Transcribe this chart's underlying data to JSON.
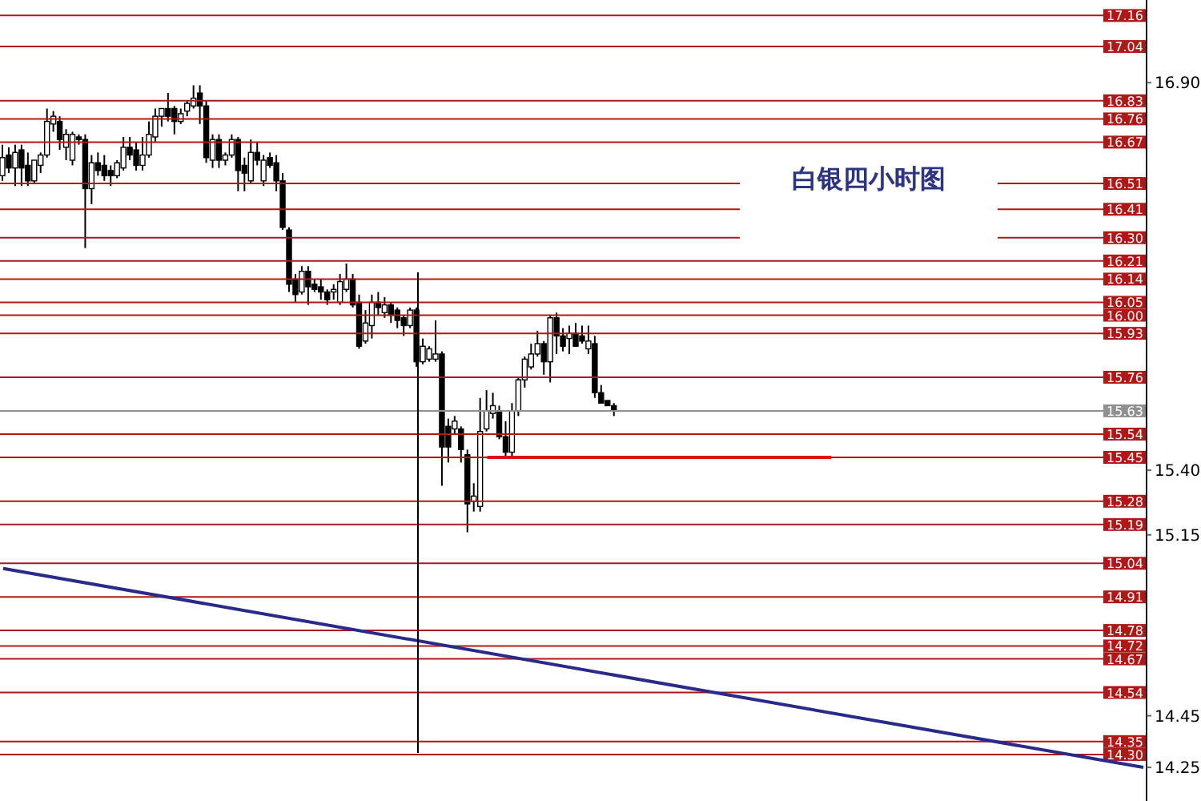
{
  "chart_data": {
    "type": "candlestick",
    "title": "白银四小时图",
    "categories": [
      null,
      null,
      null,
      null,
      null,
      null,
      null,
      null,
      null,
      null,
      null,
      null,
      null,
      null,
      null,
      null,
      null,
      null,
      null,
      null,
      null,
      null,
      null,
      null,
      null,
      null,
      null,
      null,
      null,
      null,
      null,
      null,
      null,
      null,
      null,
      null,
      null,
      null,
      null,
      null,
      null,
      null,
      null,
      null,
      null,
      null,
      null,
      null,
      null,
      null,
      null,
      null,
      null,
      null,
      null,
      null,
      null,
      null,
      null,
      null,
      null,
      null,
      null,
      null,
      null,
      null,
      null,
      null,
      null,
      null,
      null,
      null,
      null,
      null,
      null,
      null,
      null,
      null,
      null,
      null,
      null,
      null,
      null,
      null,
      null,
      null,
      null,
      null,
      null,
      null,
      null,
      null,
      null,
      null,
      null,
      null,
      null,
      null,
      null,
      null,
      null,
      null,
      null,
      null,
      null,
      null,
      null,
      null,
      null,
      null,
      null,
      null,
      null,
      null,
      null,
      null,
      null,
      null,
      null,
      null,
      null,
      null,
      null,
      null,
      null,
      null,
      null,
      null,
      null,
      null,
      null,
      null,
      null,
      null,
      null,
      null,
      null,
      null,
      null,
      null,
      null,
      null,
      null,
      null,
      null,
      null,
      null,
      null,
      null,
      null,
      null,
      null,
      null,
      null,
      null,
      null,
      null,
      null,
      null,
      null,
      null,
      null,
      null,
      null,
      null,
      null,
      null,
      null,
      null,
      null,
      null,
      null,
      null,
      null,
      null,
      null,
      null,
      null,
      null,
      null
    ],
    "ohlc": [
      [
        16.54,
        16.66,
        16.52,
        16.61
      ],
      [
        16.62,
        16.65,
        16.55,
        16.57
      ],
      [
        16.57,
        16.66,
        16.5,
        16.63
      ],
      [
        16.64,
        16.66,
        16.5,
        16.57
      ],
      [
        16.58,
        16.63,
        16.5,
        16.52
      ],
      [
        16.52,
        16.6,
        16.51,
        16.6
      ],
      [
        16.58,
        16.63,
        16.55,
        16.62
      ],
      [
        16.62,
        16.8,
        16.61,
        16.75
      ],
      [
        16.74,
        16.79,
        16.71,
        16.77
      ],
      [
        16.75,
        16.77,
        16.64,
        16.68
      ],
      [
        16.65,
        16.72,
        16.6,
        16.7
      ],
      [
        16.6,
        16.71,
        16.58,
        16.7
      ],
      [
        16.69,
        16.7,
        16.66,
        16.68
      ],
      [
        16.68,
        16.7,
        16.26,
        16.49
      ],
      [
        16.49,
        16.62,
        16.43,
        16.59
      ],
      [
        16.59,
        16.63,
        16.54,
        16.56
      ],
      [
        16.58,
        16.62,
        16.52,
        16.54
      ],
      [
        16.56,
        16.58,
        16.5,
        16.54
      ],
      [
        16.54,
        16.6,
        16.53,
        16.59
      ],
      [
        16.57,
        16.69,
        16.56,
        16.65
      ],
      [
        16.65,
        16.69,
        16.6,
        16.62
      ],
      [
        16.64,
        16.67,
        16.56,
        16.58
      ],
      [
        16.58,
        16.69,
        16.56,
        16.62
      ],
      [
        16.62,
        16.75,
        16.61,
        16.7
      ],
      [
        16.69,
        16.8,
        16.67,
        16.77
      ],
      [
        16.77,
        16.8,
        16.73,
        16.8
      ],
      [
        16.8,
        16.86,
        16.75,
        16.77
      ],
      [
        16.8,
        16.81,
        16.7,
        16.75
      ],
      [
        16.75,
        16.8,
        16.74,
        16.78
      ],
      [
        16.79,
        16.83,
        16.77,
        16.82
      ],
      [
        16.81,
        16.89,
        16.8,
        16.84
      ],
      [
        16.86,
        16.89,
        16.74,
        16.81
      ],
      [
        16.81,
        16.83,
        16.59,
        16.61
      ],
      [
        16.6,
        16.7,
        16.57,
        16.68
      ],
      [
        16.68,
        16.7,
        16.57,
        16.6
      ],
      [
        16.6,
        16.63,
        16.58,
        16.62
      ],
      [
        16.62,
        16.7,
        16.61,
        16.68
      ],
      [
        16.68,
        16.69,
        16.48,
        16.56
      ],
      [
        16.58,
        16.61,
        16.48,
        16.55
      ],
      [
        16.52,
        16.68,
        16.51,
        16.63
      ],
      [
        16.63,
        16.67,
        16.58,
        16.6
      ],
      [
        16.52,
        16.62,
        16.5,
        16.6
      ],
      [
        16.61,
        16.63,
        16.57,
        16.58
      ],
      [
        16.59,
        16.62,
        16.48,
        16.52
      ],
      [
        16.52,
        16.55,
        16.33,
        16.34
      ],
      [
        16.33,
        16.34,
        16.09,
        16.12
      ],
      [
        16.14,
        16.16,
        16.05,
        16.08
      ],
      [
        16.09,
        16.19,
        16.08,
        16.17
      ],
      [
        16.17,
        16.19,
        16.04,
        16.11
      ],
      [
        16.12,
        16.14,
        16.09,
        16.1
      ],
      [
        16.11,
        16.14,
        16.06,
        16.09
      ],
      [
        16.09,
        16.1,
        16.04,
        16.06
      ],
      [
        16.09,
        16.12,
        16.06,
        16.1
      ],
      [
        16.05,
        16.16,
        16.04,
        16.13
      ],
      [
        16.1,
        16.2,
        16.09,
        16.14
      ],
      [
        16.14,
        16.16,
        16.03,
        16.04
      ],
      [
        16.05,
        16.08,
        15.87,
        15.88
      ],
      [
        15.9,
        16.02,
        15.89,
        15.97
      ],
      [
        15.96,
        16.08,
        15.91,
        16.05
      ],
      [
        16.05,
        16.09,
        16.0,
        16.03
      ],
      [
        16.01,
        16.07,
        15.99,
        16.04
      ],
      [
        16.04,
        16.05,
        15.97,
        16.0
      ],
      [
        16.02,
        16.03,
        15.95,
        15.98
      ],
      [
        15.99,
        16.0,
        15.92,
        15.96
      ],
      [
        15.96,
        16.03,
        15.95,
        16.02
      ],
      [
        16.02,
        16.03,
        15.8,
        15.82
      ],
      [
        15.82,
        15.91,
        15.81,
        15.88
      ],
      [
        15.83,
        15.88,
        15.82,
        15.87
      ],
      [
        15.83,
        15.98,
        15.82,
        15.85
      ],
      [
        15.85,
        15.86,
        15.34,
        15.49
      ],
      [
        15.57,
        15.6,
        15.43,
        15.49
      ],
      [
        15.56,
        15.61,
        15.54,
        15.59
      ],
      [
        15.56,
        15.57,
        15.43,
        15.48
      ],
      [
        15.46,
        15.48,
        15.16,
        15.27
      ],
      [
        15.28,
        15.35,
        15.24,
        15.3
      ],
      [
        15.26,
        15.68,
        15.24,
        15.55
      ],
      [
        15.56,
        15.71,
        15.55,
        15.63
      ],
      [
        15.62,
        15.7,
        15.6,
        15.65
      ],
      [
        15.63,
        15.65,
        15.52,
        15.53
      ],
      [
        15.53,
        15.59,
        15.45,
        15.47
      ],
      [
        15.47,
        15.66,
        15.45,
        15.63
      ],
      [
        15.63,
        15.76,
        15.61,
        15.75
      ],
      [
        15.75,
        15.84,
        15.72,
        15.83
      ],
      [
        15.8,
        15.89,
        15.79,
        15.85
      ],
      [
        15.85,
        15.94,
        15.84,
        15.89
      ],
      [
        15.89,
        15.9,
        15.77,
        15.82
      ],
      [
        15.82,
        16.0,
        15.74,
        15.99
      ],
      [
        15.99,
        16.01,
        15.85,
        15.92
      ],
      [
        15.92,
        15.95,
        15.86,
        15.88
      ],
      [
        15.91,
        15.96,
        15.85,
        15.93
      ],
      [
        15.93,
        15.97,
        15.88,
        15.88
      ],
      [
        15.92,
        15.96,
        15.89,
        15.9
      ],
      [
        15.87,
        15.96,
        15.85,
        15.9
      ],
      [
        15.89,
        15.92,
        15.68,
        15.7
      ],
      [
        15.7,
        15.73,
        15.66,
        15.66
      ],
      [
        15.67,
        15.67,
        15.65,
        15.65
      ],
      [
        15.65,
        15.66,
        15.61,
        15.63
      ],
      null,
      null,
      null,
      null,
      null,
      null,
      null,
      null,
      null,
      null,
      null,
      null,
      null,
      null,
      null,
      null,
      null,
      null,
      null,
      null,
      null,
      null,
      null,
      null,
      null,
      null,
      null,
      null,
      null,
      null,
      null,
      null,
      null,
      null,
      null,
      null,
      null,
      null,
      null,
      null,
      null,
      null,
      null,
      null,
      null,
      null,
      null,
      null,
      null,
      null,
      null,
      null,
      null,
      null,
      null,
      null,
      null,
      null,
      null,
      null,
      null,
      null,
      null,
      null,
      null,
      null,
      null,
      null,
      null,
      null,
      null,
      null,
      null,
      null,
      null,
      null,
      null,
      null,
      null,
      null,
      null,
      null,
      null
    ],
    "series": [
      {
        "type": "line",
        "color": "#e01010",
        "values": [
          null,
          null,
          null,
          null,
          null,
          null,
          null,
          null,
          null,
          null,
          null,
          null,
          null,
          null,
          null,
          null,
          null,
          null,
          null,
          null,
          null,
          null,
          null,
          null,
          null,
          null,
          null,
          null,
          null,
          null,
          null,
          null,
          null,
          null,
          null,
          null,
          null,
          null,
          null,
          null,
          null,
          null,
          null,
          null,
          null,
          null,
          null,
          null,
          null,
          null,
          null,
          null,
          null,
          null,
          null,
          null,
          null,
          null,
          null,
          null,
          null,
          null,
          null,
          null,
          null,
          null,
          null,
          null,
          null,
          null,
          null,
          null,
          null,
          null,
          null,
          null,
          15.45,
          15.45,
          15.45,
          15.45,
          15.45,
          15.45,
          15.45,
          15.45,
          15.45,
          15.45,
          15.45,
          15.45,
          15.45,
          15.45,
          15.45,
          15.45,
          15.45,
          15.45,
          15.45,
          15.45,
          15.45,
          15.45,
          15.45,
          15.45,
          15.45,
          15.45,
          15.45,
          15.45,
          15.45,
          15.45,
          15.45,
          15.45,
          15.45,
          15.45,
          15.45,
          15.45,
          15.45,
          15.45,
          15.45,
          15.45,
          15.45,
          15.45,
          15.45,
          15.45,
          15.45,
          15.45,
          15.45,
          15.45,
          15.45,
          15.45,
          15.45,
          15.45,
          15.45,
          15.45,
          15.45,
          null,
          null,
          null,
          null,
          null,
          null,
          null,
          null,
          null,
          null,
          null,
          null,
          null,
          null,
          null,
          null,
          null,
          null,
          null,
          null,
          null,
          null,
          null,
          null,
          null,
          null,
          null,
          null,
          null,
          null,
          null,
          null,
          null,
          null,
          null,
          null,
          null,
          null,
          null,
          null,
          null,
          null,
          null,
          null,
          null,
          null,
          null,
          null,
          null
        ]
      },
      {
        "type": "line",
        "color": "#2a2a8c",
        "values": [
          15.02,
          null,
          null,
          null,
          null,
          null,
          null,
          null,
          null,
          null,
          null,
          null,
          null,
          null,
          null,
          null,
          null,
          null,
          null,
          null,
          null,
          null,
          null,
          null,
          null,
          null,
          null,
          null,
          null,
          null,
          null,
          null,
          null,
          null,
          null,
          null,
          null,
          null,
          null,
          null,
          null,
          null,
          null,
          null,
          null,
          null,
          null,
          null,
          null,
          null,
          null,
          null,
          null,
          null,
          null,
          null,
          null,
          null,
          null,
          null,
          null,
          null,
          null,
          null,
          null,
          null,
          null,
          null,
          null,
          null,
          null,
          null,
          null,
          null,
          null,
          null,
          null,
          null,
          null,
          null,
          null,
          null,
          null,
          null,
          null,
          null,
          null,
          null,
          null,
          null,
          null,
          null,
          null,
          null,
          null,
          null,
          null,
          null,
          null,
          null,
          null,
          null,
          null,
          null,
          null,
          null,
          null,
          null,
          null,
          null,
          null,
          null,
          null,
          null,
          null,
          null,
          null,
          null,
          null,
          null,
          null,
          null,
          null,
          null,
          null,
          null,
          null,
          null,
          null,
          null,
          null,
          null,
          null,
          null,
          null,
          null,
          null,
          null,
          null,
          null,
          null,
          null,
          null,
          null,
          null,
          null,
          null,
          null,
          null,
          null,
          null,
          null,
          null,
          null,
          null,
          null,
          null,
          null,
          null,
          null,
          null,
          null,
          null,
          null,
          null,
          null,
          null,
          null,
          null,
          null,
          null,
          null,
          null,
          null,
          null,
          null,
          null,
          null,
          null,
          14.25
        ]
      }
    ],
    "ylim": [
      14.12,
      17.22
    ],
    "yticks": [
      {
        "value": 16.9,
        "label": "16.90"
      },
      {
        "value": 15.4,
        "label": "15.40"
      },
      {
        "value": 15.15,
        "label": "15.15"
      },
      {
        "value": 14.45,
        "label": "14.45"
      },
      {
        "value": 14.25,
        "label": "14.25"
      }
    ],
    "tick_labels": "y",
    "ref_lines": [
      {
        "axis": "y",
        "value": 17.16,
        "label": "17.16",
        "color": "#b01818"
      },
      {
        "axis": "y",
        "value": 17.04,
        "label": "17.04",
        "color": "#b01818"
      },
      {
        "axis": "y",
        "value": 16.83,
        "label": "16.83",
        "color": "#b01818"
      },
      {
        "axis": "y",
        "value": 16.76,
        "label": "16.76",
        "color": "#b01818"
      },
      {
        "axis": "y",
        "value": 16.67,
        "label": "16.67",
        "color": "#b01818"
      },
      {
        "axis": "y",
        "value": 16.51,
        "label": "16.51",
        "color": "#b01818"
      },
      {
        "axis": "y",
        "value": 16.41,
        "label": "16.41",
        "color": "#b01818"
      },
      {
        "axis": "y",
        "value": 16.3,
        "label": "16.30",
        "color": "#b01818"
      },
      {
        "axis": "y",
        "value": 16.21,
        "label": "16.21",
        "color": "#b01818"
      },
      {
        "axis": "y",
        "value": 16.14,
        "label": "16.14",
        "color": "#b01818"
      },
      {
        "axis": "y",
        "value": 16.05,
        "label": "16.05",
        "color": "#b01818"
      },
      {
        "axis": "y",
        "value": 16.0,
        "label": "16.00",
        "color": "#b01818"
      },
      {
        "axis": "y",
        "value": 15.93,
        "label": "15.93",
        "color": "#b01818"
      },
      {
        "axis": "y",
        "value": 15.76,
        "label": "15.76",
        "color": "#b01818"
      },
      {
        "axis": "y",
        "value": 15.63,
        "label": "15.63",
        "color": "#909090"
      },
      {
        "axis": "y",
        "value": 15.54,
        "label": "15.54",
        "color": "#b01818"
      },
      {
        "axis": "y",
        "value": 15.45,
        "label": "15.45",
        "color": "#b01818"
      },
      {
        "axis": "y",
        "value": 15.28,
        "label": "15.28",
        "color": "#b01818"
      },
      {
        "axis": "y",
        "value": 15.19,
        "label": "15.19",
        "color": "#b01818"
      },
      {
        "axis": "y",
        "value": 15.04,
        "label": "15.04",
        "color": "#b01818"
      },
      {
        "axis": "y",
        "value": 14.91,
        "label": "14.91",
        "color": "#b01818"
      },
      {
        "axis": "y",
        "value": 14.78,
        "label": "14.78",
        "color": "#b01818"
      },
      {
        "axis": "y",
        "value": 14.72,
        "label": "14.72",
        "color": "#b01818"
      },
      {
        "axis": "y",
        "value": 14.67,
        "label": "14.67",
        "color": "#b01818"
      },
      {
        "axis": "y",
        "value": 14.54,
        "label": "14.54",
        "color": "#b01818"
      },
      {
        "axis": "y",
        "value": 14.35,
        "label": "14.35",
        "color": "#b01818"
      },
      {
        "axis": "y",
        "value": 14.3,
        "label": "14.30",
        "color": "#b01818"
      }
    ]
  }
}
